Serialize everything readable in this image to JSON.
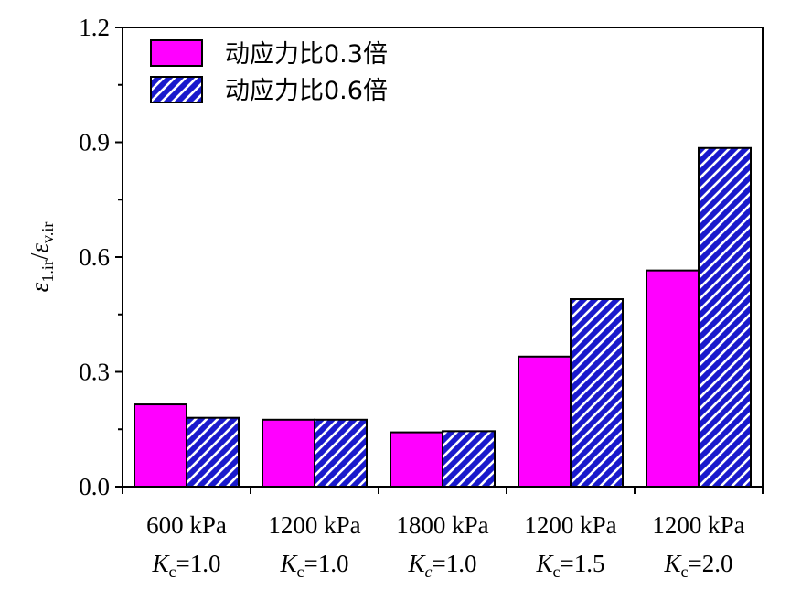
{
  "chart_data": {
    "type": "bar",
    "categories": [
      {
        "line1": "600 kPa",
        "k_sym": "K",
        "k_sub": "c",
        "k_val": "=1.0",
        "sub_italic": false
      },
      {
        "line1": "1200 kPa",
        "k_sym": "K",
        "k_sub": "c",
        "k_val": "=1.0",
        "sub_italic": false
      },
      {
        "line1": "1800 kPa",
        "k_sym": "K",
        "k_sub": "c",
        "k_val": "=1.0",
        "sub_italic": true
      },
      {
        "line1": "1200 kPa",
        "k_sym": "K",
        "k_sub": "c",
        "k_val": "=1.5",
        "sub_italic": false
      },
      {
        "line1": "1200 kPa",
        "k_sym": "K",
        "k_sub": "c",
        "k_val": "=2.0",
        "sub_italic": false
      }
    ],
    "series": [
      {
        "name": "动应力比0.3倍",
        "values": [
          0.215,
          0.175,
          0.142,
          0.34,
          0.565
        ],
        "color": "#ff00ff",
        "pattern": "solid"
      },
      {
        "name": "动应力比0.6倍",
        "values": [
          0.18,
          0.175,
          0.145,
          0.49,
          0.885
        ],
        "color": "#1a1acc",
        "pattern": "hatch"
      }
    ],
    "ylabel": {
      "num": "ε",
      "num_sub": "1.ir",
      "sep": "/",
      "den": "ε",
      "den_sub": "v.ir"
    },
    "ylim": [
      0,
      1.2
    ],
    "yticks": [
      "0.0",
      "0.3",
      "0.6",
      "0.9",
      "1.2"
    ],
    "ytick_values": [
      0,
      0.3,
      0.6,
      0.9,
      1.2
    ],
    "legend_position": "top-left",
    "grid": false
  }
}
